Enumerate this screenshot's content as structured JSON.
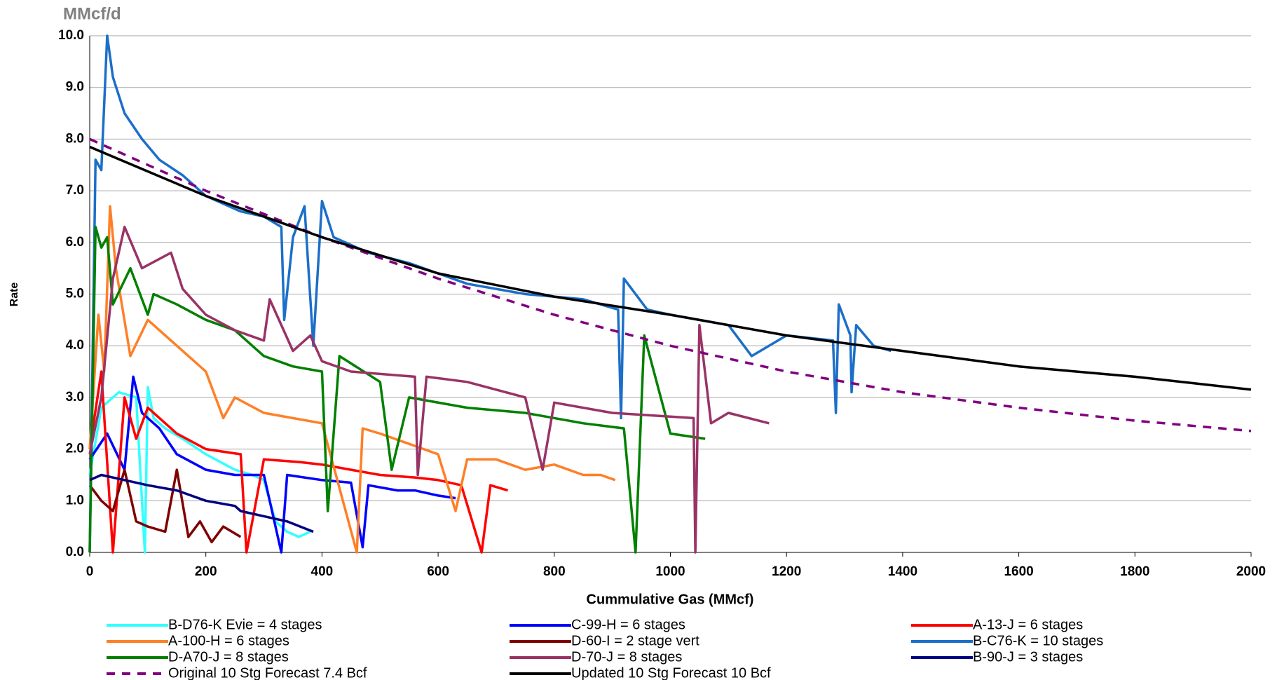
{
  "chart_data": {
    "type": "line",
    "unit_label": "MMcf/d",
    "ylabel": "Rate",
    "xlabel": "Cummulative Gas (MMcf)",
    "xlim": [
      0,
      2000
    ],
    "xticks": [
      0,
      200,
      400,
      600,
      800,
      1000,
      1200,
      1400,
      1600,
      1800,
      2000
    ],
    "ylim": [
      0,
      10
    ],
    "yticks": [
      {
        "value": 0,
        "label": "0.0"
      },
      {
        "value": 1,
        "label": "1.0"
      },
      {
        "value": 2,
        "label": "2.0"
      },
      {
        "value": 3,
        "label": "3.0"
      },
      {
        "value": 4,
        "label": "4.0"
      },
      {
        "value": 5,
        "label": "5.0"
      },
      {
        "value": 6,
        "label": "6.0"
      },
      {
        "value": 7,
        "label": "7.0"
      },
      {
        "value": 8,
        "label": "8.0"
      },
      {
        "value": 9,
        "label": "9.0"
      },
      {
        "value": 10,
        "label": "10.0"
      }
    ],
    "grid": true,
    "legend": "bottom",
    "series": [
      {
        "name": "B-D76-K Evie = 4 stages",
        "color": "#33ffff",
        "x": [
          0,
          20,
          50,
          80,
          95,
          100,
          110,
          130,
          160,
          200,
          250,
          280,
          300,
          320,
          340,
          360,
          380
        ],
        "values": [
          1.5,
          2.8,
          3.1,
          3.0,
          0,
          3.2,
          2.6,
          2.4,
          2.2,
          1.9,
          1.6,
          1.5,
          1.4,
          0.6,
          0.4,
          0.3,
          0.4
        ]
      },
      {
        "name": "C-99-H = 6 stages",
        "color": "#0000ff",
        "x": [
          0,
          30,
          60,
          75,
          90,
          120,
          150,
          200,
          250,
          300,
          330,
          340,
          400,
          450,
          470,
          480,
          530,
          560,
          600,
          630
        ],
        "values": [
          1.8,
          2.3,
          1.6,
          3.4,
          2.7,
          2.4,
          1.9,
          1.6,
          1.5,
          1.5,
          0,
          1.5,
          1.4,
          1.35,
          0.1,
          1.3,
          1.2,
          1.2,
          1.1,
          1.05
        ]
      },
      {
        "name": "A-13-J = 6 stages",
        "color": "#ff0000",
        "x": [
          0,
          20,
          40,
          60,
          80,
          100,
          150,
          200,
          260,
          270,
          300,
          360,
          400,
          450,
          500,
          560,
          600,
          640,
          675,
          690,
          720
        ],
        "values": [
          2,
          3.5,
          0,
          3,
          2.2,
          2.8,
          2.3,
          2.0,
          1.9,
          0,
          1.8,
          1.75,
          1.7,
          1.6,
          1.5,
          1.45,
          1.4,
          1.3,
          0,
          1.3,
          1.2
        ]
      },
      {
        "name": "A-100-H = 6 stages",
        "color": "#ff7f27",
        "x": [
          0,
          15,
          25,
          35,
          45,
          70,
          100,
          150,
          200,
          230,
          250,
          300,
          400,
          460,
          470,
          500,
          550,
          600,
          630,
          650,
          700,
          750,
          800,
          850,
          880,
          905
        ],
        "values": [
          2,
          4.6,
          3.5,
          6.7,
          5.5,
          3.8,
          4.5,
          4.0,
          3.5,
          2.6,
          3.0,
          2.7,
          2.5,
          0,
          2.4,
          2.3,
          2.1,
          1.9,
          0.8,
          1.8,
          1.8,
          1.6,
          1.7,
          1.5,
          1.5,
          1.4
        ]
      },
      {
        "name": "D-60-I = 2 stage vert",
        "color": "#7f0000",
        "x": [
          0,
          20,
          40,
          60,
          80,
          100,
          130,
          150,
          170,
          190,
          210,
          230,
          260
        ],
        "values": [
          1.3,
          1.0,
          0.8,
          1.6,
          0.6,
          0.5,
          0.4,
          1.6,
          0.3,
          0.6,
          0.2,
          0.5,
          0.3
        ]
      },
      {
        "name": "B-C76-K = 10 stages",
        "color": "#1c6fc8",
        "x": [
          0,
          10,
          20,
          30,
          40,
          60,
          90,
          120,
          160,
          200,
          260,
          300,
          330,
          335,
          350,
          370,
          385,
          400,
          420,
          480,
          550,
          650,
          750,
          850,
          910,
          915,
          920,
          960,
          1000,
          1100,
          1140,
          1200,
          1280,
          1285,
          1290,
          1310,
          1312,
          1320,
          1350,
          1380
        ],
        "values": [
          0,
          7.6,
          7.4,
          10.0,
          9.2,
          8.5,
          8.0,
          7.6,
          7.3,
          6.9,
          6.6,
          6.5,
          6.3,
          4.5,
          6.1,
          6.7,
          4.0,
          6.8,
          6.1,
          5.8,
          5.6,
          5.2,
          5.0,
          4.9,
          4.7,
          2.6,
          5.3,
          4.7,
          4.6,
          4.4,
          3.8,
          4.2,
          4.1,
          2.7,
          4.8,
          4.2,
          3.1,
          4.4,
          4.0,
          3.9
        ]
      },
      {
        "name": "D-A70-J = 8 stages",
        "color": "#008000",
        "x": [
          0,
          10,
          20,
          30,
          40,
          70,
          100,
          110,
          150,
          200,
          250,
          300,
          350,
          400,
          410,
          430,
          500,
          520,
          550,
          650,
          750,
          850,
          920,
          940,
          955,
          1000,
          1060
        ],
        "values": [
          0,
          6.3,
          5.9,
          6.1,
          4.8,
          5.5,
          4.6,
          5.0,
          4.8,
          4.5,
          4.3,
          3.8,
          3.6,
          3.5,
          0.8,
          3.8,
          3.3,
          1.6,
          3.0,
          2.8,
          2.7,
          2.5,
          2.4,
          0,
          4.2,
          2.3,
          2.2
        ]
      },
      {
        "name": "D-70-J = 8 stages",
        "color": "#993366",
        "x": [
          0,
          20,
          40,
          60,
          90,
          140,
          160,
          200,
          250,
          300,
          310,
          350,
          380,
          400,
          450,
          560,
          565,
          580,
          650,
          750,
          780,
          800,
          900,
          1040,
          1043,
          1050,
          1070,
          1100,
          1170
        ],
        "values": [
          1.9,
          3,
          5.3,
          6.3,
          5.5,
          5.8,
          5.1,
          4.6,
          4.3,
          4.1,
          4.9,
          3.9,
          4.2,
          3.7,
          3.5,
          3.4,
          1.5,
          3.4,
          3.3,
          3.0,
          1.6,
          2.9,
          2.7,
          2.6,
          0,
          4.4,
          2.5,
          2.7,
          2.5
        ]
      },
      {
        "name": "B-90-J = 3 stages",
        "color": "#000080",
        "x": [
          0,
          20,
          60,
          100,
          150,
          200,
          250,
          260,
          300,
          340,
          385
        ],
        "values": [
          1.4,
          1.5,
          1.4,
          1.3,
          1.2,
          1.0,
          0.9,
          0.8,
          0.7,
          0.6,
          0.4
        ]
      },
      {
        "name": "Original 10 Stg Forecast 7.4 Bcf",
        "color": "#800080",
        "dash": true,
        "x": [
          0,
          200,
          400,
          600,
          800,
          1000,
          1200,
          1400,
          1600,
          1800,
          2000
        ],
        "values": [
          8.0,
          7.0,
          6.1,
          5.3,
          4.6,
          4.0,
          3.5,
          3.1,
          2.8,
          2.55,
          2.35
        ]
      },
      {
        "name": "Updated 10 Stg Forecast 10 Bcf",
        "color": "#000000",
        "x": [
          0,
          200,
          400,
          600,
          800,
          1000,
          1200,
          1400,
          1600,
          1800,
          2000
        ],
        "values": [
          7.85,
          6.9,
          6.1,
          5.4,
          4.95,
          4.6,
          4.2,
          3.9,
          3.6,
          3.4,
          3.15
        ]
      }
    ]
  }
}
